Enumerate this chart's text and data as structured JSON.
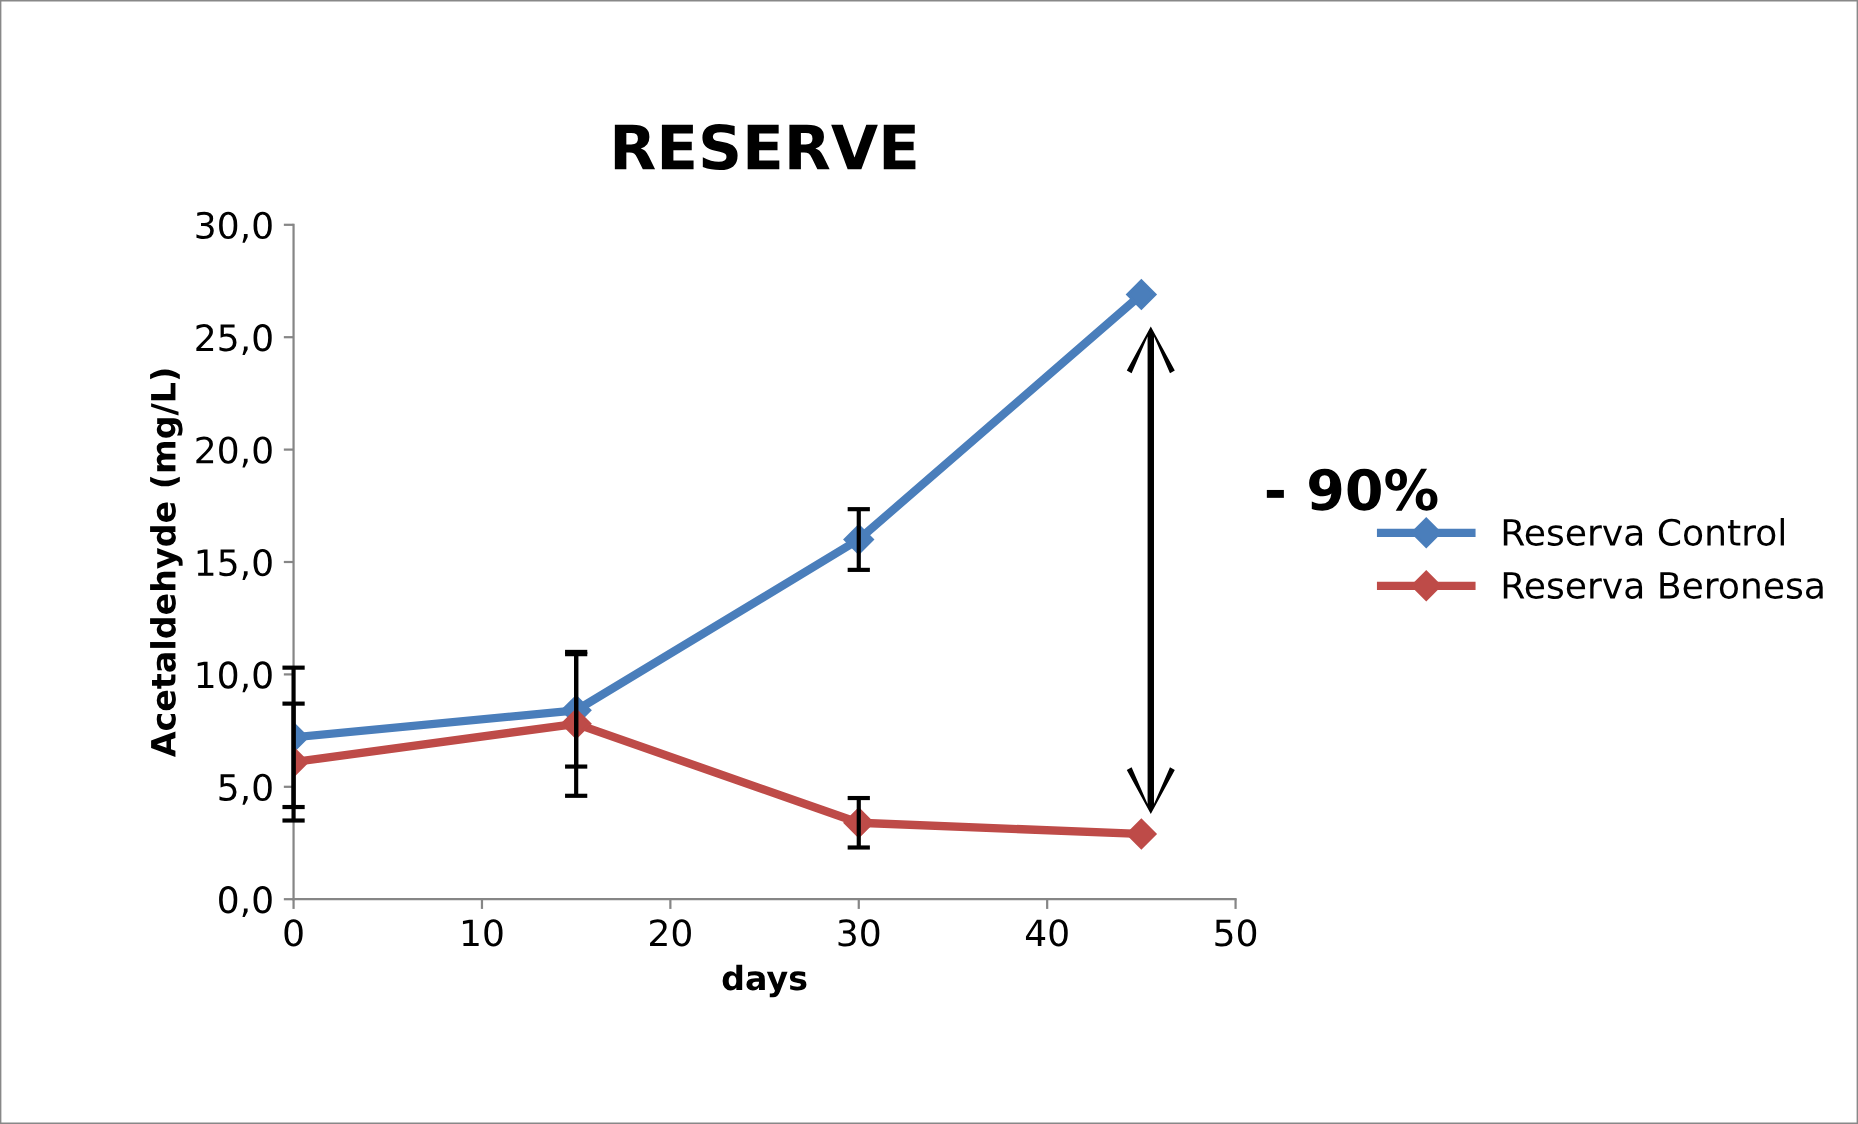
{
  "chart_data": {
    "type": "line",
    "title": "RESERVE",
    "xlabel": "days",
    "ylabel": "Acetaldehyde (mg/L)",
    "x": [
      0,
      15,
      30,
      45
    ],
    "series": [
      {
        "name": "Reserva Control",
        "color": "#4a7ebb",
        "values": [
          7.2,
          8.4,
          16.0,
          26.9
        ],
        "errors": [
          3.1,
          2.5,
          1.35,
          null
        ]
      },
      {
        "name": "Reserva Beronesa",
        "color": "#be4b48",
        "values": [
          6.1,
          7.8,
          3.4,
          2.9
        ],
        "errors": [
          2.6,
          3.2,
          1.1,
          null
        ]
      }
    ],
    "annotations": [
      "- 90%"
    ],
    "xlim": [
      0,
      50
    ],
    "xticks": [
      0,
      10,
      20,
      30,
      40,
      50
    ],
    "ylim": [
      0,
      30
    ],
    "yticks": [
      {
        "value": 0,
        "label": "0,0"
      },
      {
        "value": 5,
        "label": "5,0"
      },
      {
        "value": 10,
        "label": "10,0"
      },
      {
        "value": 15,
        "label": "15,0"
      },
      {
        "value": 20,
        "label": "20,0"
      },
      {
        "value": 25,
        "label": "25,0"
      },
      {
        "value": 30,
        "label": "30,0"
      }
    ],
    "grid": false,
    "legend": "right",
    "marker": "diamond",
    "line_style": "solid"
  }
}
